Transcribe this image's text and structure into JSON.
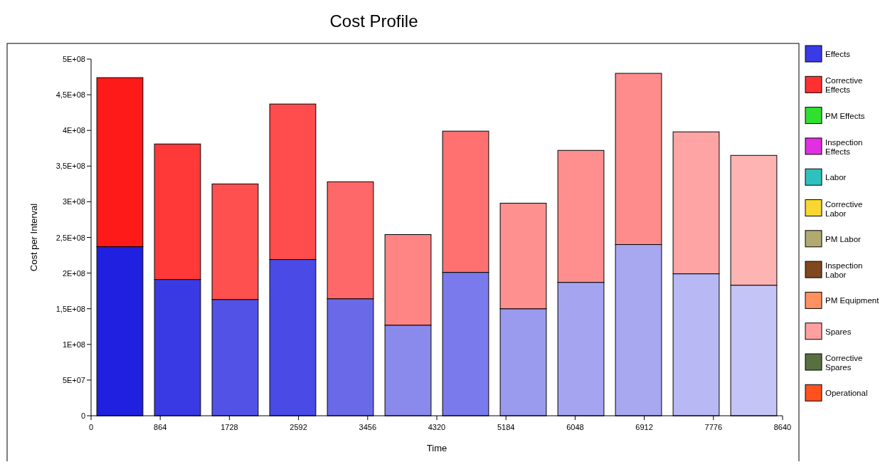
{
  "chart_data": {
    "type": "bar",
    "title": "Cost Profile",
    "xlabel": "Time",
    "ylabel": "Cost per Interval",
    "stacked": true,
    "legend": "right",
    "x": [
      360,
      1080,
      1800,
      2520,
      3240,
      3960,
      4680,
      5400,
      6120,
      6840,
      7560,
      8280
    ],
    "xlim": [
      0,
      8640
    ],
    "xticks": [
      0,
      864,
      1728,
      2592,
      3456,
      4320,
      5184,
      6048,
      6912,
      7776,
      8640
    ],
    "ylim": [
      0,
      500000000
    ],
    "yticks": [
      {
        "value": 0,
        "label": "0"
      },
      {
        "value": 50000000,
        "label": "5E+07"
      },
      {
        "value": 100000000,
        "label": "1E+08"
      },
      {
        "value": 150000000,
        "label": "1,5E+08"
      },
      {
        "value": 200000000,
        "label": "2E+08"
      },
      {
        "value": 250000000,
        "label": "2,5E+08"
      },
      {
        "value": 300000000,
        "label": "3E+08"
      },
      {
        "value": 350000000,
        "label": "3,5E+08"
      },
      {
        "value": 400000000,
        "label": "4E+08"
      },
      {
        "value": 450000000,
        "label": "4,5E+08"
      },
      {
        "value": 500000000,
        "label": "5E+08"
      }
    ],
    "series": [
      {
        "name": "Effects",
        "color": "#3a3ae6",
        "colors": [
          "#2020e0",
          "#3a3ae4",
          "#5252e6",
          "#4a4ae6",
          "#6a6ae8",
          "#8a8aec",
          "#7a7aec",
          "#9a9aee",
          "#a4a4f0",
          "#a8a8f0",
          "#b8b8f4",
          "#c4c4f6"
        ],
        "values": [
          237000000,
          191000000,
          163000000,
          219000000,
          164000000,
          127000000,
          201000000,
          150000000,
          187000000,
          240000000,
          199000000,
          183000000
        ]
      },
      {
        "name": "Corrective Effects",
        "color": "#ff3030",
        "colors": [
          "#ff1a1a",
          "#ff3838",
          "#ff5050",
          "#ff4c4c",
          "#ff6868",
          "#ff8484",
          "#ff7070",
          "#ff9090",
          "#ff8e8e",
          "#ff8c8c",
          "#ffa4a4",
          "#ffb4b4"
        ],
        "values": [
          237000000,
          190000000,
          162000000,
          218000000,
          164000000,
          127000000,
          198000000,
          148000000,
          185000000,
          240000000,
          199000000,
          182000000
        ]
      },
      {
        "name": "PM Effects",
        "color": "#30e030",
        "values": [
          0,
          0,
          0,
          0,
          0,
          0,
          0,
          0,
          0,
          0,
          0,
          0
        ]
      },
      {
        "name": "Inspection Effects",
        "color": "#e030e0",
        "values": [
          0,
          0,
          0,
          0,
          0,
          0,
          0,
          0,
          0,
          0,
          0,
          0
        ]
      },
      {
        "name": "Labor",
        "color": "#30c0c0",
        "values": [
          0,
          0,
          0,
          0,
          0,
          0,
          0,
          0,
          0,
          0,
          0,
          0
        ]
      },
      {
        "name": "Corrective Labor",
        "color": "#f8d830",
        "values": [
          0,
          0,
          0,
          0,
          0,
          0,
          0,
          0,
          0,
          0,
          0,
          0
        ]
      },
      {
        "name": "PM Labor",
        "color": "#b0aa70",
        "values": [
          0,
          0,
          0,
          0,
          0,
          0,
          0,
          0,
          0,
          0,
          0,
          0
        ]
      },
      {
        "name": "Inspection Labor",
        "color": "#804820",
        "values": [
          0,
          0,
          0,
          0,
          0,
          0,
          0,
          0,
          0,
          0,
          0,
          0
        ]
      },
      {
        "name": "PM Equipment",
        "color": "#ff9060",
        "values": [
          0,
          0,
          0,
          0,
          0,
          0,
          0,
          0,
          0,
          0,
          0,
          0
        ]
      },
      {
        "name": "Spares",
        "color": "#ffa0a0",
        "values": [
          0,
          0,
          0,
          0,
          0,
          0,
          0,
          0,
          0,
          0,
          0,
          0
        ]
      },
      {
        "name": "Corrective Spares",
        "color": "#587040",
        "values": [
          0,
          0,
          0,
          0,
          0,
          0,
          0,
          0,
          0,
          0,
          0,
          0
        ]
      },
      {
        "name": "Operational",
        "color": "#ff5020",
        "values": [
          0,
          0,
          0,
          0,
          0,
          0,
          0,
          0,
          0,
          0,
          0,
          0
        ]
      }
    ]
  }
}
